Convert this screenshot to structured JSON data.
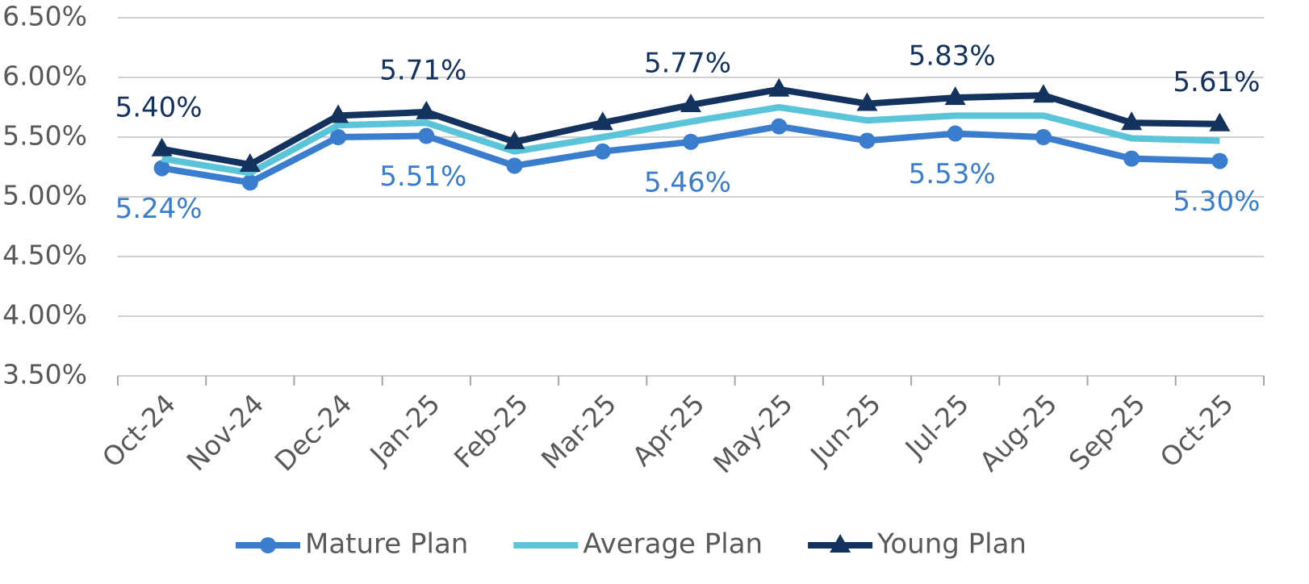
{
  "chart_data": {
    "type": "line",
    "categories": [
      "Oct-24",
      "Nov-24",
      "Dec-24",
      "Jan-25",
      "Feb-25",
      "Mar-25",
      "Apr-25",
      "May-25",
      "Jun-25",
      "Jul-25",
      "Aug-25",
      "Sep-25",
      "Oct-25"
    ],
    "series": [
      {
        "name": "Mature Plan",
        "color": "#3a7dce",
        "marker": "circle",
        "values": [
          5.24,
          5.12,
          5.5,
          5.51,
          5.26,
          5.38,
          5.46,
          5.59,
          5.47,
          5.53,
          5.5,
          5.32,
          5.3
        ],
        "value_labels": [
          "5.24%",
          null,
          null,
          "5.51%",
          null,
          null,
          "5.46%",
          null,
          null,
          "5.53%",
          null,
          null,
          "5.30%"
        ],
        "label_position": "below"
      },
      {
        "name": "Average Plan",
        "color": "#5bc4d9",
        "marker": "none",
        "values": [
          5.32,
          5.2,
          5.6,
          5.62,
          5.38,
          5.5,
          5.63,
          5.75,
          5.64,
          5.68,
          5.68,
          5.49,
          5.47
        ]
      },
      {
        "name": "Young Plan",
        "color": "#14325e",
        "marker": "triangle",
        "values": [
          5.4,
          5.27,
          5.68,
          5.71,
          5.46,
          5.62,
          5.77,
          5.9,
          5.78,
          5.83,
          5.85,
          5.62,
          5.61
        ],
        "value_labels": [
          "5.40%",
          null,
          null,
          "5.71%",
          null,
          null,
          "5.77%",
          null,
          null,
          "5.83%",
          null,
          null,
          "5.61%"
        ],
        "label_position": "above"
      }
    ],
    "ylim": [
      3.5,
      6.5
    ],
    "yticks": [
      {
        "value": 3.5,
        "label": "3.50%"
      },
      {
        "value": 4.0,
        "label": "4.00%"
      },
      {
        "value": 4.5,
        "label": "4.50%"
      },
      {
        "value": 5.0,
        "label": "5.00%"
      },
      {
        "value": 5.5,
        "label": "5.50%"
      },
      {
        "value": 6.0,
        "label": "6.00%"
      },
      {
        "value": 6.5,
        "label": "6.50%"
      }
    ],
    "grid": true,
    "legend": "bottom"
  }
}
